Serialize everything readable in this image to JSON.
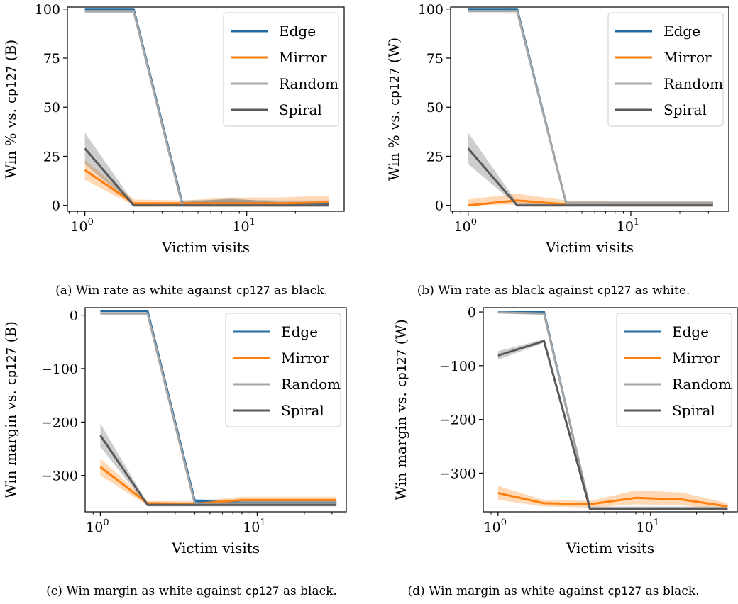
{
  "colors": {
    "Edge": "#1f6ba2",
    "Mirror": "#ff7f0e",
    "Random": "#a6a6a6",
    "Spiral": "#595959"
  },
  "chart_data": [
    {
      "id": "a",
      "type": "line",
      "caption_prefix": "(a) Win rate as white against ",
      "caption_code": "cp127",
      "caption_suffix": " as black.",
      "xlabel": "Victim visits",
      "ylabel_prefix": "Win % vs. ",
      "ylabel_code": "cp127",
      "ylabel_suffix": " (B)",
      "xscale": "log",
      "xlim": [
        0.78,
        40
      ],
      "ylim": [
        -3,
        101
      ],
      "yticks": [
        0,
        25,
        50,
        75,
        100
      ],
      "xticks": [
        {
          "value": 1,
          "base": "10",
          "exp": "0"
        },
        {
          "value": 10,
          "base": "10",
          "exp": "1"
        }
      ],
      "legend": "top-right",
      "series": [
        {
          "name": "Edge",
          "x": [
            1,
            2,
            4,
            8,
            16,
            32
          ],
          "y": [
            100,
            100,
            1,
            1,
            1,
            1
          ],
          "lo": [
            98,
            98,
            0,
            0,
            0,
            0
          ],
          "hi": [
            100,
            100,
            2.5,
            3,
            2.5,
            2.5
          ]
        },
        {
          "name": "Mirror",
          "x": [
            1,
            2,
            4,
            8,
            16,
            32
          ],
          "y": [
            18,
            1,
            1,
            1,
            1,
            1.5
          ],
          "lo": [
            13,
            0,
            0,
            0,
            0,
            0
          ],
          "hi": [
            23,
            3,
            2.5,
            4,
            4,
            5
          ]
        },
        {
          "name": "Random",
          "x": [
            1,
            2,
            4,
            8,
            16,
            32
          ],
          "y": [
            99,
            99,
            0,
            0,
            0,
            0
          ],
          "lo": [
            98,
            98,
            0,
            0,
            0,
            0
          ],
          "hi": [
            100,
            100,
            1.5,
            1.5,
            1.5,
            1.5
          ]
        },
        {
          "name": "Spiral",
          "x": [
            1,
            2,
            4,
            8,
            16,
            32
          ],
          "y": [
            29,
            0,
            0,
            0,
            0,
            0
          ],
          "lo": [
            21,
            0,
            0,
            0,
            0,
            0
          ],
          "hi": [
            37,
            1.5,
            1.5,
            3.5,
            1.5,
            1.5
          ]
        }
      ]
    },
    {
      "id": "b",
      "type": "line",
      "caption_prefix": "(b) Win rate as black against ",
      "caption_code": "cp127",
      "caption_suffix": " as white.",
      "xlabel": "Victim visits",
      "ylabel_prefix": "Win % vs. ",
      "ylabel_code": "cp127",
      "ylabel_suffix": " (W)",
      "xscale": "log",
      "xlim": [
        0.78,
        40
      ],
      "ylim": [
        -3,
        101
      ],
      "yticks": [
        0,
        25,
        50,
        75,
        100
      ],
      "xticks": [
        {
          "value": 1,
          "base": "10",
          "exp": "0"
        },
        {
          "value": 10,
          "base": "10",
          "exp": "1"
        }
      ],
      "legend": "top-right",
      "series": [
        {
          "name": "Edge",
          "x": [
            1,
            2,
            4,
            8,
            16,
            32
          ],
          "y": [
            100,
            100,
            1,
            1,
            1,
            1
          ],
          "lo": [
            99,
            99,
            0,
            0,
            0,
            0
          ],
          "hi": [
            100,
            100,
            2,
            2,
            2,
            2
          ]
        },
        {
          "name": "Mirror",
          "x": [
            1,
            2,
            4,
            8,
            16,
            32
          ],
          "y": [
            0,
            2.5,
            0.5,
            0.5,
            0.5,
            0.5
          ],
          "lo": [
            0,
            0.5,
            0,
            0,
            0,
            0
          ],
          "hi": [
            3,
            6,
            2.5,
            2,
            2,
            2
          ]
        },
        {
          "name": "Random",
          "x": [
            1,
            2,
            4,
            8,
            16,
            32
          ],
          "y": [
            99,
            99,
            1,
            1,
            1,
            1
          ],
          "lo": [
            98,
            97.5,
            0,
            0,
            0,
            0
          ],
          "hi": [
            100,
            100,
            2,
            2,
            2,
            2
          ]
        },
        {
          "name": "Spiral",
          "x": [
            1,
            2,
            4,
            8,
            16,
            32
          ],
          "y": [
            29,
            0,
            0,
            0,
            0,
            0
          ],
          "lo": [
            21,
            0,
            0,
            0,
            0,
            0
          ],
          "hi": [
            37,
            1.5,
            1,
            1,
            1,
            1
          ]
        }
      ]
    },
    {
      "id": "c",
      "type": "line",
      "caption_prefix": "(c) Win margin as white against ",
      "caption_code": "cp127",
      "caption_suffix": " as black.",
      "xlabel": "Victim visits",
      "ylabel_prefix": "Win margin vs. ",
      "ylabel_code": "cp127",
      "ylabel_suffix": " (B)",
      "xscale": "log",
      "xlim": [
        0.8,
        37
      ],
      "ylim": [
        -368,
        14
      ],
      "yticks": [
        0,
        -100,
        -200,
        -300
      ],
      "xticks": [
        {
          "value": 1,
          "base": "10",
          "exp": "0"
        },
        {
          "value": 10,
          "base": "10",
          "exp": "1"
        }
      ],
      "legend": "top-right",
      "series": [
        {
          "name": "Edge",
          "x": [
            1,
            2,
            4,
            8,
            16,
            32
          ],
          "y": [
            8,
            8,
            -348,
            -351,
            -351,
            -351
          ],
          "lo": [
            5,
            5,
            -352,
            -355,
            -355,
            -355
          ],
          "hi": [
            10,
            10,
            -344,
            -347,
            -347,
            -347
          ]
        },
        {
          "name": "Mirror",
          "x": [
            1,
            2,
            4,
            8,
            16,
            32
          ],
          "y": [
            -284,
            -352,
            -353,
            -346,
            -346,
            -346
          ],
          "lo": [
            -300,
            -356,
            -357,
            -352,
            -352,
            -352
          ],
          "hi": [
            -268,
            -348,
            -348,
            -340,
            -340,
            -340
          ]
        },
        {
          "name": "Random",
          "x": [
            1,
            2,
            4,
            8,
            16,
            32
          ],
          "y": [
            3,
            3,
            -353,
            -352,
            -352,
            -352
          ],
          "lo": [
            0,
            0,
            -357,
            -356,
            -356,
            -356
          ],
          "hi": [
            6,
            6,
            -349,
            -348,
            -348,
            -348
          ]
        },
        {
          "name": "Spiral",
          "x": [
            1,
            2,
            4,
            8,
            16,
            32
          ],
          "y": [
            -225,
            -355,
            -355,
            -355,
            -355,
            -355
          ],
          "lo": [
            -246,
            -358,
            -358,
            -358,
            -358,
            -358
          ],
          "hi": [
            -203,
            -352,
            -352,
            -352,
            -352,
            -352
          ]
        }
      ]
    },
    {
      "id": "d",
      "type": "line",
      "caption_prefix": "(d) Win margin as white against ",
      "caption_code": "cp127",
      "caption_suffix": " as black.",
      "xlabel": "Victim visits",
      "ylabel_prefix": "Win margin vs. ",
      "ylabel_code": "cp127",
      "ylabel_suffix": " (W)",
      "xscale": "log",
      "xlim": [
        0.8,
        37
      ],
      "ylim": [
        -372,
        8
      ],
      "yticks": [
        0,
        -100,
        -200,
        -300
      ],
      "xticks": [
        {
          "value": 1,
          "base": "10",
          "exp": "0"
        },
        {
          "value": 10,
          "base": "10",
          "exp": "1"
        }
      ],
      "legend": "top-right",
      "series": [
        {
          "name": "Edge",
          "x": [
            1,
            2,
            4,
            8,
            16,
            32
          ],
          "y": [
            0,
            0,
            -366,
            -366,
            -366,
            -366
          ],
          "lo": [
            -2,
            -2,
            -369,
            -369,
            -369,
            -369
          ],
          "hi": [
            2,
            2,
            -363,
            -363,
            -363,
            -363
          ]
        },
        {
          "name": "Mirror",
          "x": [
            1,
            2,
            4,
            8,
            16,
            32
          ],
          "y": [
            -337,
            -356,
            -358,
            -346,
            -349,
            -362
          ],
          "lo": [
            -350,
            -362,
            -364,
            -358,
            -360,
            -368
          ],
          "hi": [
            -324,
            -350,
            -352,
            -332,
            -336,
            -356
          ]
        },
        {
          "name": "Random",
          "x": [
            1,
            2,
            4,
            8,
            16,
            32
          ],
          "y": [
            -1,
            -3,
            -365,
            -365,
            -365,
            -365
          ],
          "lo": [
            -3,
            -6,
            -368,
            -368,
            -368,
            -368
          ],
          "hi": [
            1,
            0,
            -362,
            -362,
            -362,
            -362
          ]
        },
        {
          "name": "Spiral",
          "x": [
            1,
            2,
            4,
            8,
            16,
            32
          ],
          "y": [
            -81,
            -54,
            -366,
            -366,
            -366,
            -366
          ],
          "lo": [
            -89,
            -57,
            -369,
            -369,
            -369,
            -369
          ],
          "hi": [
            -73,
            -51,
            -363,
            -363,
            -363,
            -363
          ]
        }
      ]
    }
  ]
}
